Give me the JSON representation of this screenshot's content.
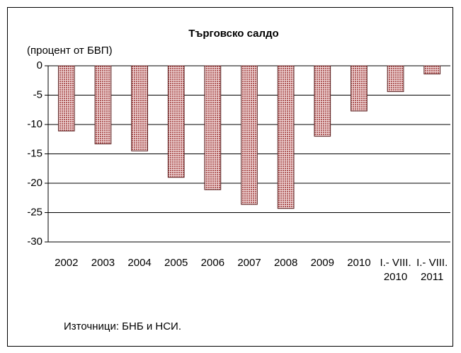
{
  "chart_data": {
    "type": "bar",
    "title": "Търговско салдо",
    "subtitle": "(процент от БВП)",
    "note": "Източници: БНБ и НСИ.",
    "categories": [
      "2002",
      "2003",
      "2004",
      "2005",
      "2006",
      "2007",
      "2008",
      "2009",
      "2010",
      "I.- VIII. 2010",
      "I.- VIII. 2011"
    ],
    "values": [
      -11.1,
      -13.3,
      -14.5,
      -19,
      -21.1,
      -23.6,
      -24.3,
      -12,
      -7.7,
      -4.4,
      -1.4
    ],
    "color": "#b05a5a",
    "ylim": [
      -30,
      0
    ],
    "yticks": [
      0,
      -5,
      -10,
      -15,
      -20,
      -25,
      -30
    ],
    "grid": true
  }
}
